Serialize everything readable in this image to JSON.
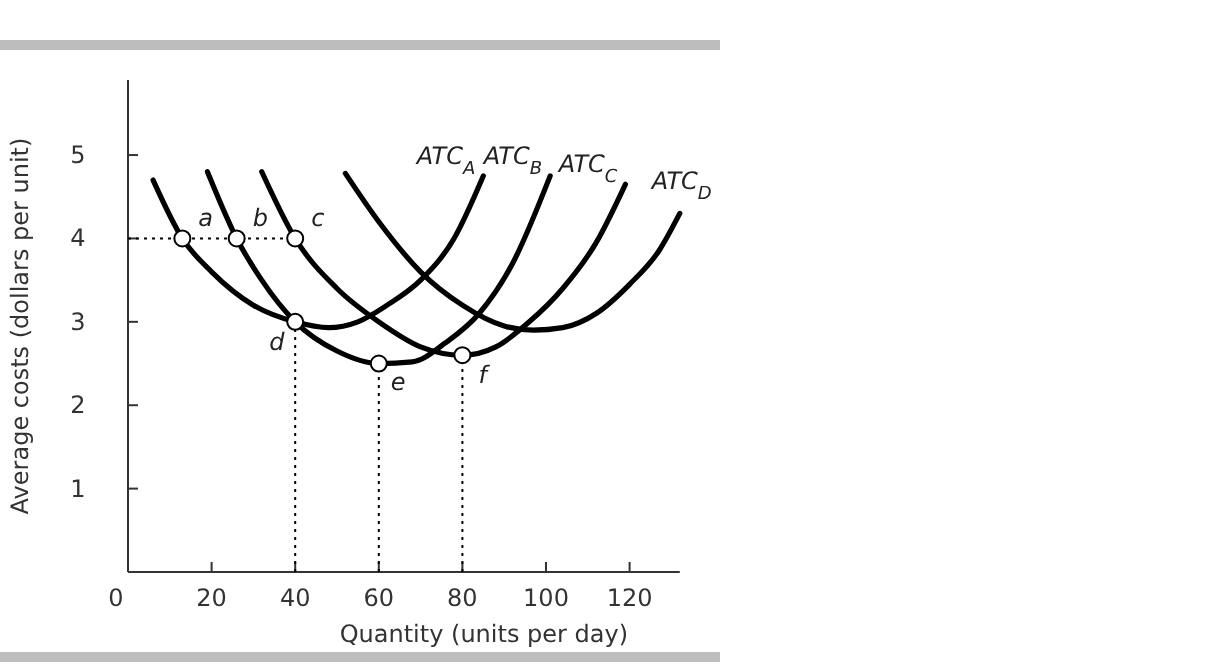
{
  "chart_data": {
    "type": "line",
    "xlabel": "Quantity (units per day)",
    "ylabel": "Average costs (dollars per unit)",
    "xlim": [
      0,
      132
    ],
    "ylim": [
      0,
      5.9
    ],
    "xticks": [
      0,
      20,
      40,
      60,
      80,
      100,
      120
    ],
    "yticks": [
      {
        "value": 0,
        "label": null
      },
      1,
      2,
      3,
      4,
      5
    ],
    "grid": false,
    "series": [
      {
        "name": "ATC$_{A}$",
        "color": "#000000",
        "line_style": "solid",
        "x": [
          6,
          13,
          20,
          30,
          40,
          48,
          55,
          62,
          70,
          78,
          85
        ],
        "values": [
          4.7,
          4.0,
          3.6,
          3.2,
          3.0,
          2.93,
          3.0,
          3.2,
          3.5,
          4.0,
          4.75
        ]
      },
      {
        "name": "ATC$_{B}$",
        "color": "#000000",
        "line_style": "solid",
        "x": [
          19,
          26,
          32,
          40,
          50,
          60,
          68,
          76,
          84,
          92,
          101
        ],
        "values": [
          4.8,
          4.0,
          3.5,
          3.0,
          2.65,
          2.5,
          2.52,
          2.75,
          3.1,
          3.7,
          4.75
        ]
      },
      {
        "name": "ATC$_{C}$",
        "color": "#000000",
        "line_style": "solid",
        "x": [
          32,
          40,
          50,
          60,
          70,
          80,
          88,
          96,
          104,
          112,
          119
        ],
        "values": [
          4.8,
          4.0,
          3.4,
          3.0,
          2.7,
          2.6,
          2.7,
          3.0,
          3.4,
          3.95,
          4.65
        ]
      },
      {
        "name": "ATC$_{D}$",
        "color": "#000000",
        "line_style": "solid",
        "x": [
          52,
          60,
          70,
          80,
          90,
          97,
          104,
          112,
          120,
          127,
          132
        ],
        "values": [
          4.78,
          4.2,
          3.6,
          3.2,
          2.95,
          2.9,
          2.93,
          3.1,
          3.45,
          3.85,
          4.3
        ]
      },
      {
        "color": "#000000",
        "line_style": "dotted",
        "x": [
          0,
          40
        ],
        "values": [
          4,
          4
        ]
      },
      {
        "color": "#000000",
        "line_style": "dotted",
        "x": [
          40,
          40
        ],
        "values": [
          0,
          3
        ]
      },
      {
        "color": "#000000",
        "line_style": "dotted",
        "x": [
          60,
          60
        ],
        "values": [
          0,
          2.5
        ]
      },
      {
        "color": "#000000",
        "line_style": "dotted",
        "x": [
          80,
          80
        ],
        "values": [
          0,
          2.6
        ]
      },
      {
        "type": "scatter",
        "color": "#000000",
        "marker": "circle",
        "x": [
          13,
          26,
          40,
          40,
          60,
          80
        ],
        "values": [
          4,
          4,
          4,
          3,
          2.5,
          2.6
        ]
      }
    ],
    "annotations": [
      {
        "text": "a",
        "x": 13,
        "y": 4
      },
      {
        "text": "b",
        "x": 26,
        "y": 4
      },
      {
        "text": "c",
        "x": 40,
        "y": 4
      },
      {
        "text": "d",
        "x": 40,
        "y": 3
      },
      {
        "text": "e",
        "x": 60,
        "y": 2.5
      },
      {
        "text": "f",
        "x": 80,
        "y": 2.6
      }
    ]
  }
}
